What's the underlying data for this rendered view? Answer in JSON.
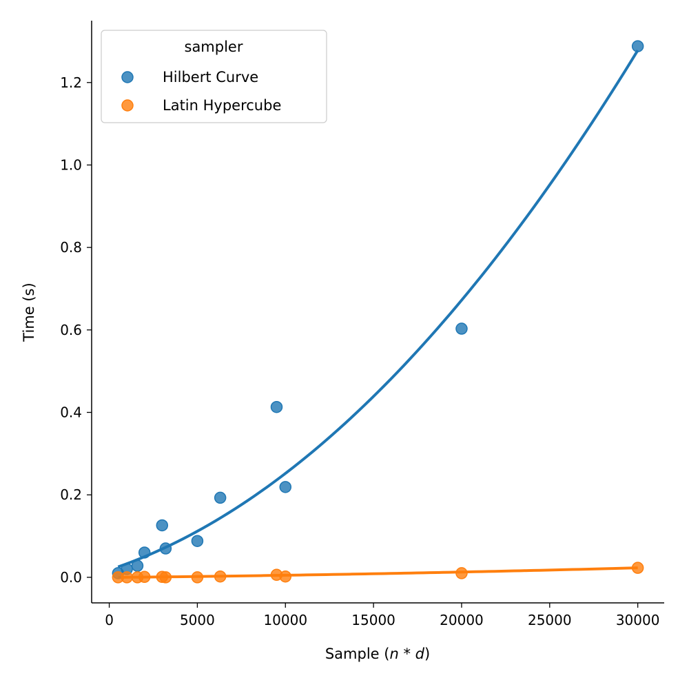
{
  "chart_data": {
    "type": "scatter",
    "xlabel_main": "Sample (",
    "xlabel_math": "n * d",
    "xlabel_close": ")",
    "ylabel": "Time (s)",
    "xlim": [
      -1000,
      31500
    ],
    "ylim": [
      -0.062,
      1.35
    ],
    "xticks": [
      0,
      5000,
      10000,
      15000,
      20000,
      25000,
      30000
    ],
    "yticks": [
      0.0,
      0.2,
      0.4,
      0.6,
      0.8,
      1.0,
      1.2
    ],
    "ytick_labels": [
      "0.0",
      "0.2",
      "0.4",
      "0.6",
      "0.8",
      "1.0",
      "1.2"
    ],
    "grid": false,
    "legend": {
      "title": "sampler",
      "position": "top-left"
    },
    "series": [
      {
        "name": "Hilbert Curve",
        "color": "#1f77b4",
        "points": [
          [
            500,
            0.01
          ],
          [
            1000,
            0.02
          ],
          [
            1600,
            0.028
          ],
          [
            2000,
            0.06
          ],
          [
            3000,
            0.126
          ],
          [
            3200,
            0.07
          ],
          [
            5000,
            0.088
          ],
          [
            6300,
            0.193
          ],
          [
            9500,
            0.413
          ],
          [
            10000,
            0.219
          ],
          [
            20000,
            0.603
          ],
          [
            30000,
            1.288
          ]
        ],
        "fit": {
          "a": 0.018,
          "b": 1.41e-05,
          "c": 9.3e-10,
          "from": 500,
          "to": 30000
        }
      },
      {
        "name": "Latin Hypercube",
        "color": "#ff7f0e",
        "points": [
          [
            500,
            0.0
          ],
          [
            1000,
            0.0
          ],
          [
            1600,
            0.0
          ],
          [
            2000,
            0.001
          ],
          [
            3000,
            0.001
          ],
          [
            3200,
            0.0
          ],
          [
            5000,
            0.0
          ],
          [
            6300,
            0.002
          ],
          [
            9500,
            0.006
          ],
          [
            10000,
            0.002
          ],
          [
            20000,
            0.01
          ],
          [
            30000,
            0.023
          ]
        ],
        "fit": {
          "a": -0.0004,
          "b": 4.2e-07,
          "c": 1.2e-11,
          "from": 500,
          "to": 30000
        }
      }
    ]
  }
}
